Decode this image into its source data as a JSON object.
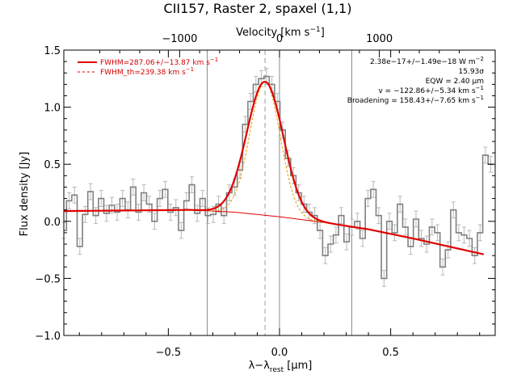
{
  "chart_data": {
    "type": "line",
    "title": "CII157, Raster 2, spaxel (1,1)",
    "xlabel": "λ−λ",
    "xlabel_sub": "rest",
    "xlabel_unit": " [μm]",
    "ylabel": "Flux density [Jy]",
    "top_xlabel": "Velocity [km s",
    "top_xlabel_sup": "−1",
    "top_xlabel_end": "]",
    "xlim": [
      -0.97,
      0.97
    ],
    "ylim": [
      -1.0,
      1.5
    ],
    "top_xlim": [
      -2160,
      2160
    ],
    "x_ticks": [
      -0.5,
      0.0,
      0.5
    ],
    "x_tick_labels": [
      "−0.5",
      "0.0",
      "0.5"
    ],
    "y_ticks": [
      -1.0,
      -0.5,
      0.0,
      0.5,
      1.0,
      1.5
    ],
    "y_tick_labels": [
      "−1.0",
      "−0.5",
      "0.0",
      "0.5",
      "1.0",
      "1.5"
    ],
    "top_ticks": [
      -1000,
      0,
      1000
    ],
    "top_tick_labels": [
      "−1000",
      "0",
      "1000"
    ],
    "vertical_lines": {
      "solid_gray": [
        -0.325,
        0.0,
        0.325
      ],
      "dashed_gray": [
        -0.065
      ]
    },
    "legend": [
      {
        "label": "FWHM=287.06+/−13.87 km s",
        "sup": "−1",
        "style": "solid",
        "color": "#e00000"
      },
      {
        "label": "FWHM_th=239.38 km s",
        "sup": "−1",
        "style": "dashed",
        "color": "#e00000"
      }
    ],
    "annotations": [
      "2.38e−17+/−1.49e−18 W m",
      "15.93σ",
      "EQW = 2.40 μm",
      "v = −122.86+/−5.34 km s",
      "Broadening = 158.43+/−7.65 km s"
    ],
    "annotation_sups": [
      "−2",
      "",
      "",
      "−1",
      "−1"
    ],
    "series": [
      {
        "style": "step",
        "color": "#808080",
        "x": [
          -0.97,
          -0.946,
          -0.922,
          -0.898,
          -0.874,
          -0.85,
          -0.826,
          -0.802,
          -0.778,
          -0.754,
          -0.73,
          -0.706,
          -0.682,
          -0.658,
          -0.634,
          -0.61,
          -0.586,
          -0.562,
          -0.538,
          -0.514,
          -0.49,
          -0.466,
          -0.442,
          -0.418,
          -0.394,
          -0.37,
          -0.346,
          -0.322,
          -0.298,
          -0.274,
          -0.25,
          -0.226,
          -0.202,
          -0.178,
          -0.154,
          -0.13,
          -0.106,
          -0.082,
          -0.058,
          -0.034,
          -0.01,
          0.014,
          0.038,
          0.062,
          0.086,
          0.11,
          0.134,
          0.158,
          0.182,
          0.206,
          0.23,
          0.254,
          0.278,
          0.302,
          0.326,
          0.35,
          0.374,
          0.398,
          0.422,
          0.446,
          0.47,
          0.494,
          0.518,
          0.542,
          0.566,
          0.59,
          0.614,
          0.638,
          0.662,
          0.686,
          0.71,
          0.734,
          0.758,
          0.782,
          0.806,
          0.83,
          0.854,
          0.878,
          0.902,
          0.926,
          0.95
        ],
        "values": [
          -0.08,
          0.18,
          0.23,
          -0.22,
          0.06,
          0.26,
          0.05,
          0.2,
          0.07,
          0.14,
          0.08,
          0.2,
          0.1,
          0.3,
          0.08,
          0.25,
          0.15,
          0.0,
          0.2,
          0.28,
          0.08,
          0.12,
          -0.08,
          0.18,
          0.32,
          0.07,
          0.2,
          0.05,
          0.06,
          0.15,
          0.05,
          0.25,
          0.3,
          0.45,
          0.85,
          1.05,
          1.2,
          1.25,
          1.27,
          1.2,
          1.05,
          0.8,
          0.55,
          0.4,
          0.25,
          0.15,
          0.08,
          0.05,
          -0.08,
          -0.3,
          -0.2,
          -0.12,
          0.05,
          -0.18,
          -0.05,
          0.0,
          -0.15,
          0.2,
          0.28,
          0.05,
          -0.5,
          0.0,
          -0.1,
          0.15,
          -0.05,
          -0.22,
          0.02,
          -0.15,
          -0.2,
          -0.05,
          -0.1,
          -0.4,
          -0.25,
          0.1,
          -0.1,
          -0.12,
          -0.15,
          -0.3,
          -0.1,
          0.58,
          0.5
        ],
        "err": 0.07
      },
      {
        "style": "solid",
        "color": "#e00000",
        "model": "gaussian_plus_baseline",
        "center": -0.065,
        "amplitude": 1.17,
        "sigma": 0.082,
        "baseline_x": [
          -0.97,
          -0.4,
          -0.2,
          0.0,
          0.2,
          0.4,
          0.6,
          0.92
        ],
        "baseline_y": [
          0.09,
          0.1,
          0.08,
          0.04,
          -0.01,
          -0.07,
          -0.15,
          -0.29
        ]
      },
      {
        "style": "dashed",
        "color": "#e6a000",
        "model": "gaussian_plus_baseline",
        "center": -0.065,
        "amplitude": 1.17,
        "sigma": 0.068
      }
    ]
  }
}
